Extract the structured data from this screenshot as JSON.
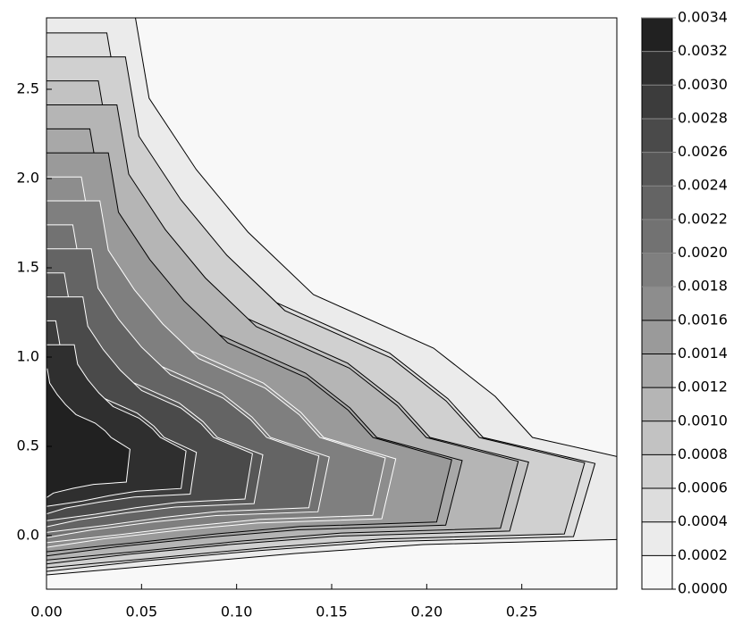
{
  "chart_data": {
    "type": "contour",
    "xlim": [
      0,
      0.3
    ],
    "ylim": [
      -0.3,
      2.9
    ],
    "xticks": [
      {
        "value": 0,
        "label": "0.00"
      },
      {
        "value": 0.05,
        "label": "0.05"
      },
      {
        "value": 0.1,
        "label": "0.10"
      },
      {
        "value": 0.15,
        "label": "0.15"
      },
      {
        "value": 0.2,
        "label": "0.20"
      },
      {
        "value": 0.25,
        "label": "0.25"
      }
    ],
    "yticks": [
      {
        "value": 0,
        "label": "0.0"
      },
      {
        "value": 0.5,
        "label": "0.5"
      },
      {
        "value": 1,
        "label": "1.0"
      },
      {
        "value": 1.5,
        "label": "1.5"
      },
      {
        "value": 2,
        "label": "2.0"
      },
      {
        "value": 2.5,
        "label": "2.5"
      }
    ],
    "colorbar_ticks": [
      {
        "value": 0,
        "label": "0.0000"
      },
      {
        "value": 0.0002,
        "label": "0.0002"
      },
      {
        "value": 0.0004,
        "label": "0.0004"
      },
      {
        "value": 0.0006,
        "label": "0.0006"
      },
      {
        "value": 0.0008,
        "label": "0.0008"
      },
      {
        "value": 0.001,
        "label": "0.0010"
      },
      {
        "value": 0.0012,
        "label": "0.0012"
      },
      {
        "value": 0.0014,
        "label": "0.0014"
      },
      {
        "value": 0.0016,
        "label": "0.0016"
      },
      {
        "value": 0.0018,
        "label": "0.0018"
      },
      {
        "value": 0.002,
        "label": "0.0020"
      },
      {
        "value": 0.0022,
        "label": "0.0022"
      },
      {
        "value": 0.0024,
        "label": "0.0024"
      },
      {
        "value": 0.0026,
        "label": "0.0026"
      },
      {
        "value": 0.0028,
        "label": "0.0028"
      },
      {
        "value": 0.003,
        "label": "0.0030"
      },
      {
        "value": 0.0032,
        "label": "0.0032"
      },
      {
        "value": 0.0034,
        "label": "0.0034"
      }
    ],
    "colormap": [
      "#f8f8f8",
      "#141414"
    ]
  }
}
